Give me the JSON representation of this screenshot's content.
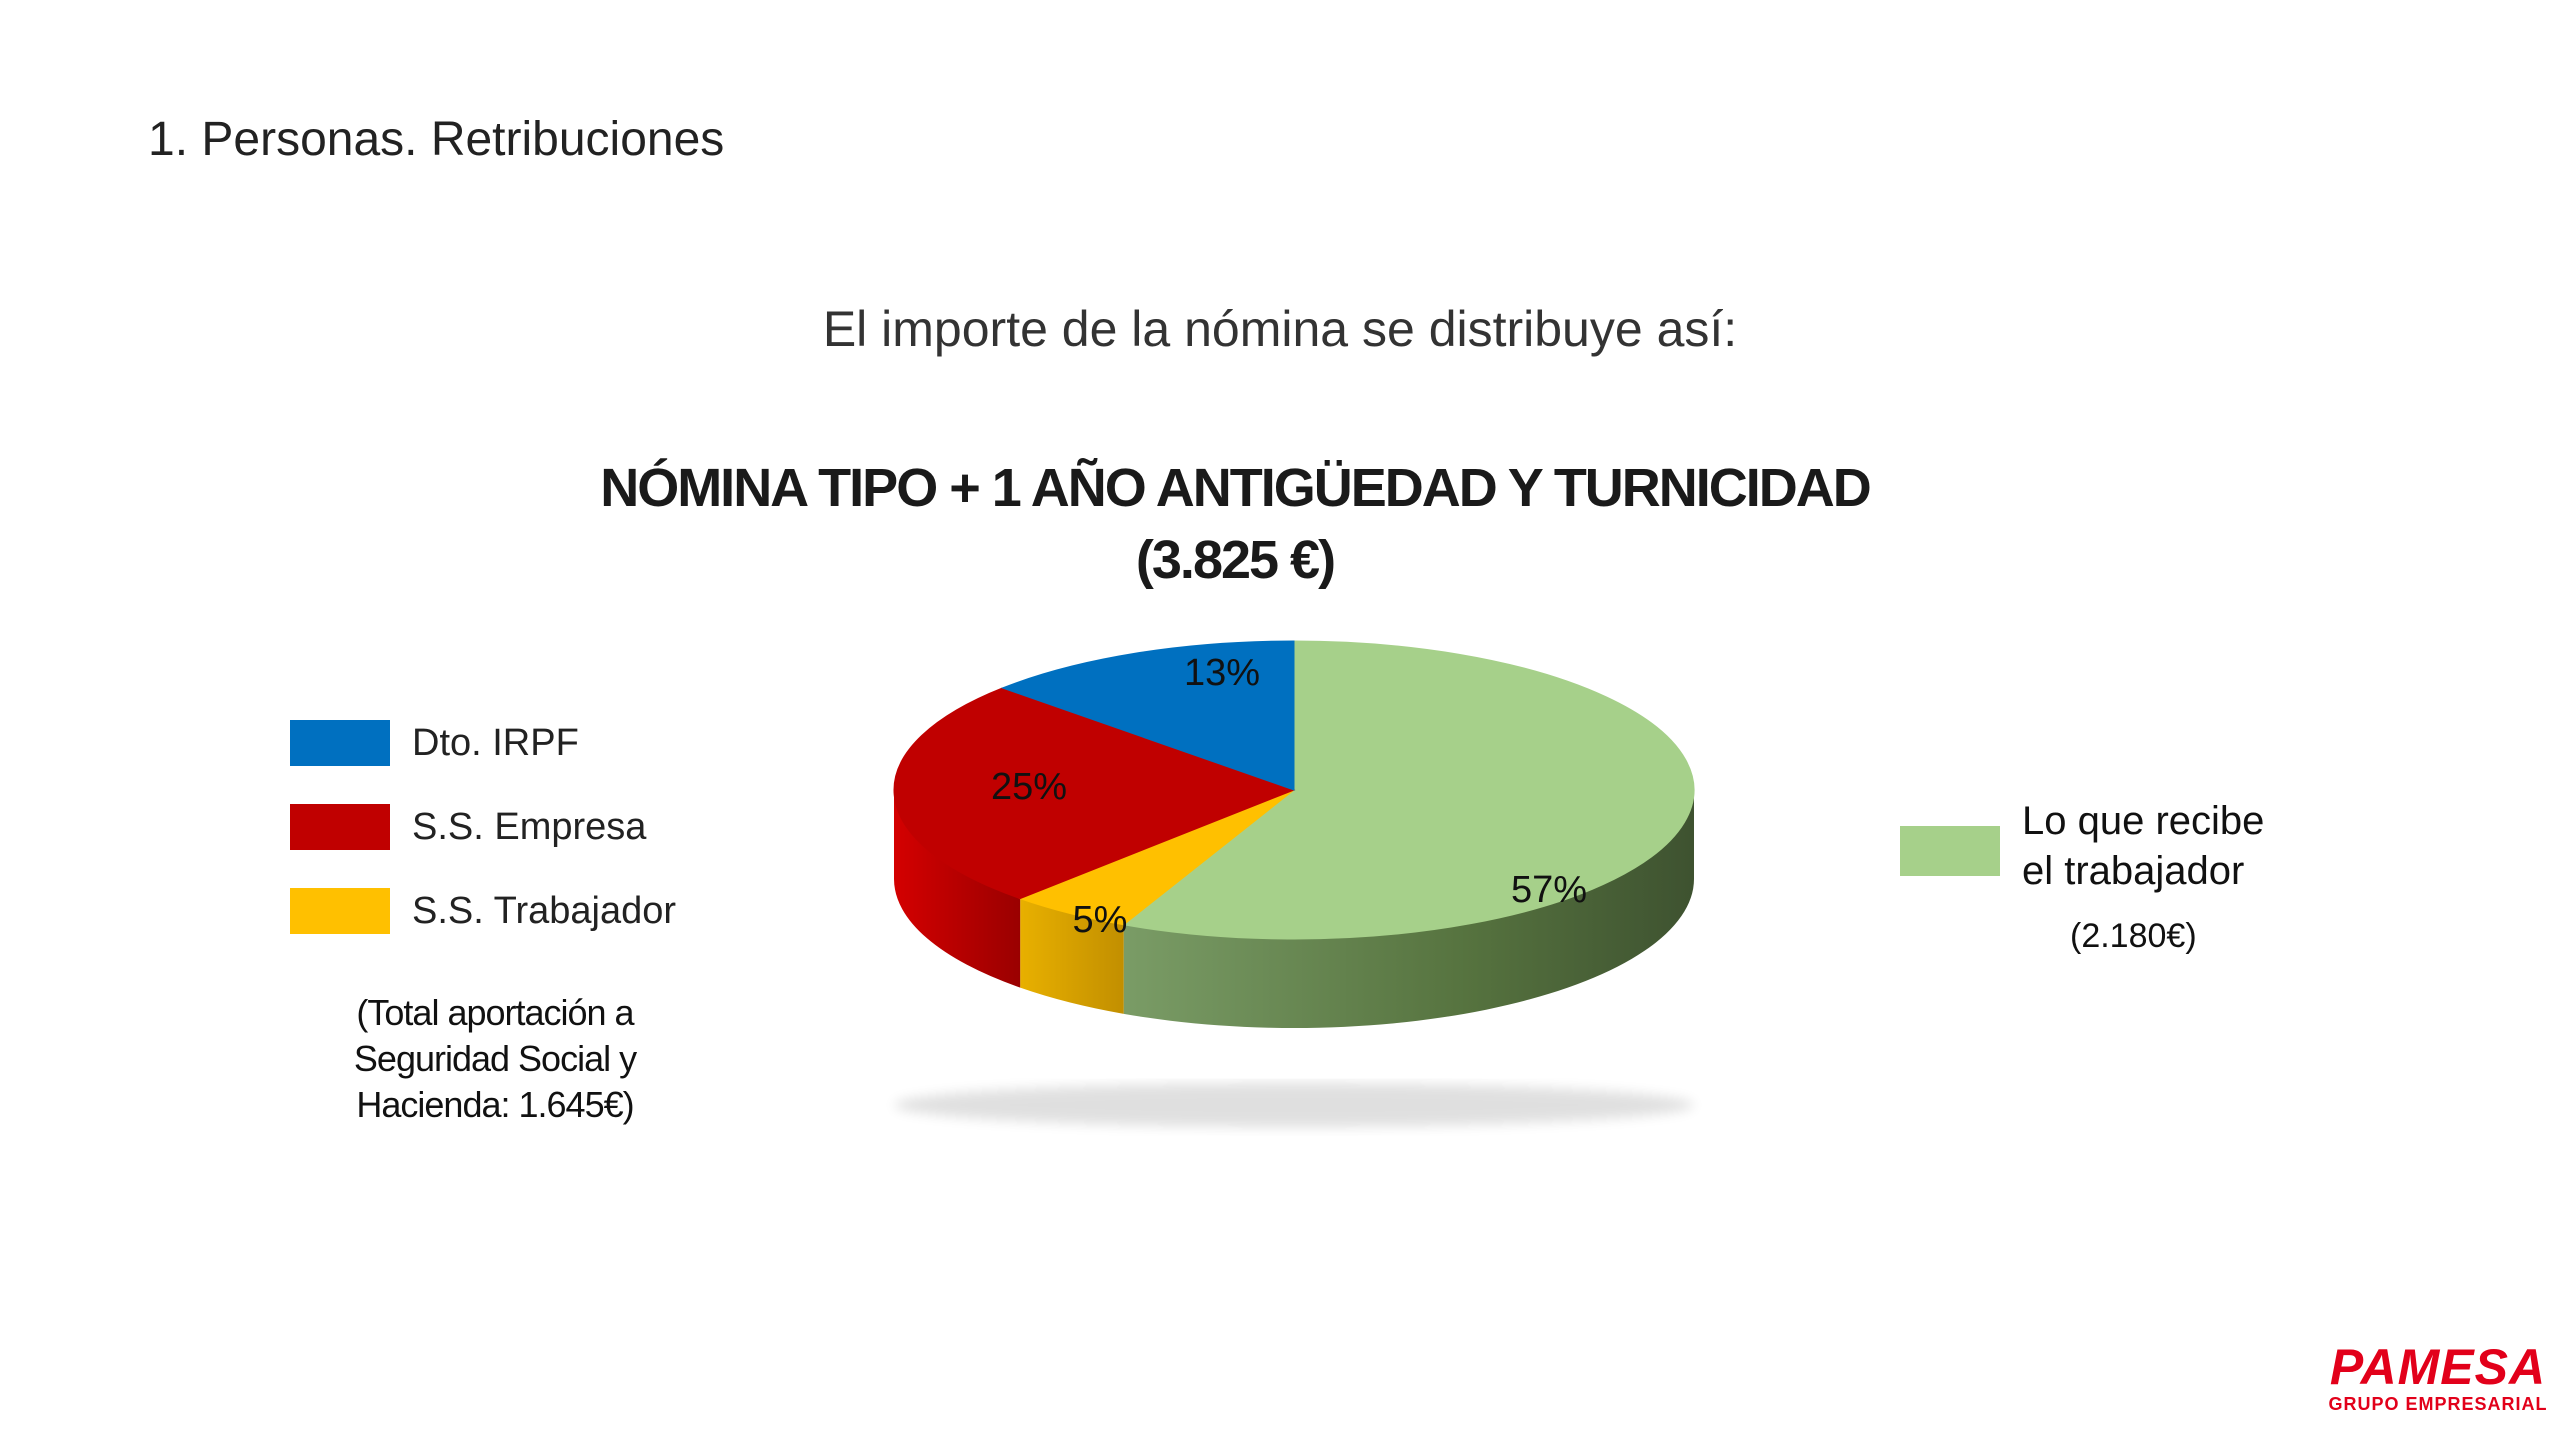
{
  "header": {
    "section_title": "1. Personas. Retribuciones"
  },
  "intro": "El importe de la nómina se distribuye así:",
  "chart_data": {
    "type": "pie",
    "title": "NÓMINA TIPO + 1 AÑO ANTIGÜEDAD Y TURNICIDAD",
    "subtitle": "(3.825 €)",
    "labels": [
      "Lo que recibe el trabajador",
      "S.S. Trabajador",
      "S.S. Empresa",
      "Dto. IRPF"
    ],
    "values": [
      57,
      5,
      25,
      13
    ],
    "data_labels": [
      "57%",
      "5%",
      "25%",
      "13%"
    ],
    "colors": [
      "#a6d08a",
      "#ffc000",
      "#c00000",
      "#0070c0"
    ],
    "style": "3d"
  },
  "legend_left": [
    {
      "label": "Dto. IRPF",
      "color": "#0070c0"
    },
    {
      "label": "S.S. Empresa",
      "color": "#c00000"
    },
    {
      "label": "S.S. Trabajador",
      "color": "#ffc000"
    }
  ],
  "ss_note": "(Total aportación a Seguridad Social y Hacienda: 1.645€)",
  "legend_right": {
    "label": "Lo que recibe el trabajador",
    "color": "#a6d08a",
    "amount": "(2.180€)"
  },
  "logo": {
    "word": "PAMESA",
    "sub": "GRUPO EMPRESARIAL"
  }
}
